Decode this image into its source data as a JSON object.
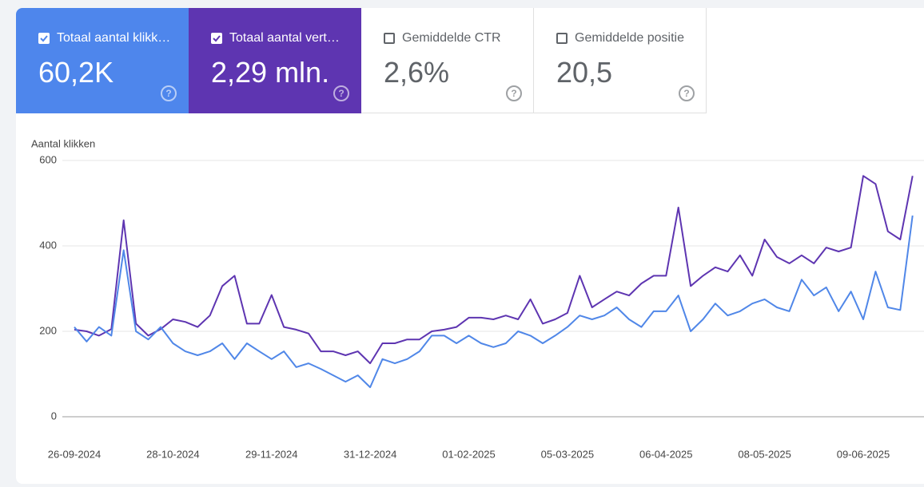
{
  "tabs": [
    {
      "label": "Totaal aantal klikk…",
      "value": "60,2K",
      "checked": true,
      "color": "#4e86ec"
    },
    {
      "label": "Totaal aantal vert…",
      "value": "2,29 mln.",
      "checked": true,
      "color": "#5e35b1"
    },
    {
      "label": "Gemiddelde CTR",
      "value": "2,6%",
      "checked": false,
      "color": "#ffffff"
    },
    {
      "label": "Gemiddelde positie",
      "value": "20,5",
      "checked": false,
      "color": "#ffffff"
    }
  ],
  "chart_data": {
    "type": "line",
    "y_label": "Aantal klikken",
    "categories": [
      "26-09-2024",
      null,
      null,
      null,
      null,
      null,
      null,
      null,
      "28-10-2024",
      null,
      null,
      null,
      null,
      null,
      null,
      null,
      "29-11-2024",
      null,
      null,
      null,
      null,
      null,
      null,
      null,
      "31-12-2024",
      null,
      null,
      null,
      null,
      null,
      null,
      null,
      "01-02-2025",
      null,
      null,
      null,
      null,
      null,
      null,
      null,
      "05-03-2025",
      null,
      null,
      null,
      null,
      null,
      null,
      null,
      "06-04-2025",
      null,
      null,
      null,
      null,
      null,
      null,
      null,
      "08-05-2025",
      null,
      null,
      null,
      null,
      null,
      null,
      null,
      "09-06-2025",
      null,
      null,
      null,
      null
    ],
    "series": [
      {
        "name": "Totaal aantal vert…",
        "color": "#5e35b1",
        "values": [
          204,
          200,
          190,
          205,
          460,
          218,
          190,
          205,
          228,
          222,
          210,
          237,
          306,
          330,
          218,
          218,
          285,
          210,
          204,
          195,
          153,
          153,
          144,
          153,
          125,
          172,
          172,
          181,
          181,
          200,
          204,
          210,
          232,
          232,
          228,
          237,
          228,
          275,
          218,
          228,
          243,
          330,
          256,
          275,
          293,
          284,
          312,
          330,
          330,
          490,
          306,
          330,
          350,
          340,
          378,
          330,
          415,
          374,
          359,
          378,
          359,
          396,
          387,
          396,
          564,
          545,
          434,
          415,
          564
        ]
      },
      {
        "name": "Totaal aantal klikk…",
        "color": "#5087e8",
        "values": [
          210,
          176,
          210,
          190,
          390,
          200,
          181,
          210,
          172,
          153,
          144,
          153,
          172,
          135,
          172,
          153,
          135,
          153,
          116,
          125,
          112,
          97,
          82,
          97,
          69,
          135,
          125,
          135,
          153,
          190,
          190,
          172,
          190,
          172,
          163,
          172,
          200,
          190,
          172,
          190,
          210,
          237,
          228,
          237,
          256,
          228,
          210,
          247,
          247,
          284,
          200,
          228,
          265,
          237,
          247,
          265,
          275,
          256,
          247,
          321,
          284,
          303,
          247,
          293,
          228,
          340,
          256,
          250,
          471
        ]
      }
    ],
    "ylim": [
      0,
      600
    ],
    "yticks": [
      0,
      200,
      400,
      600
    ],
    "grid": true
  }
}
